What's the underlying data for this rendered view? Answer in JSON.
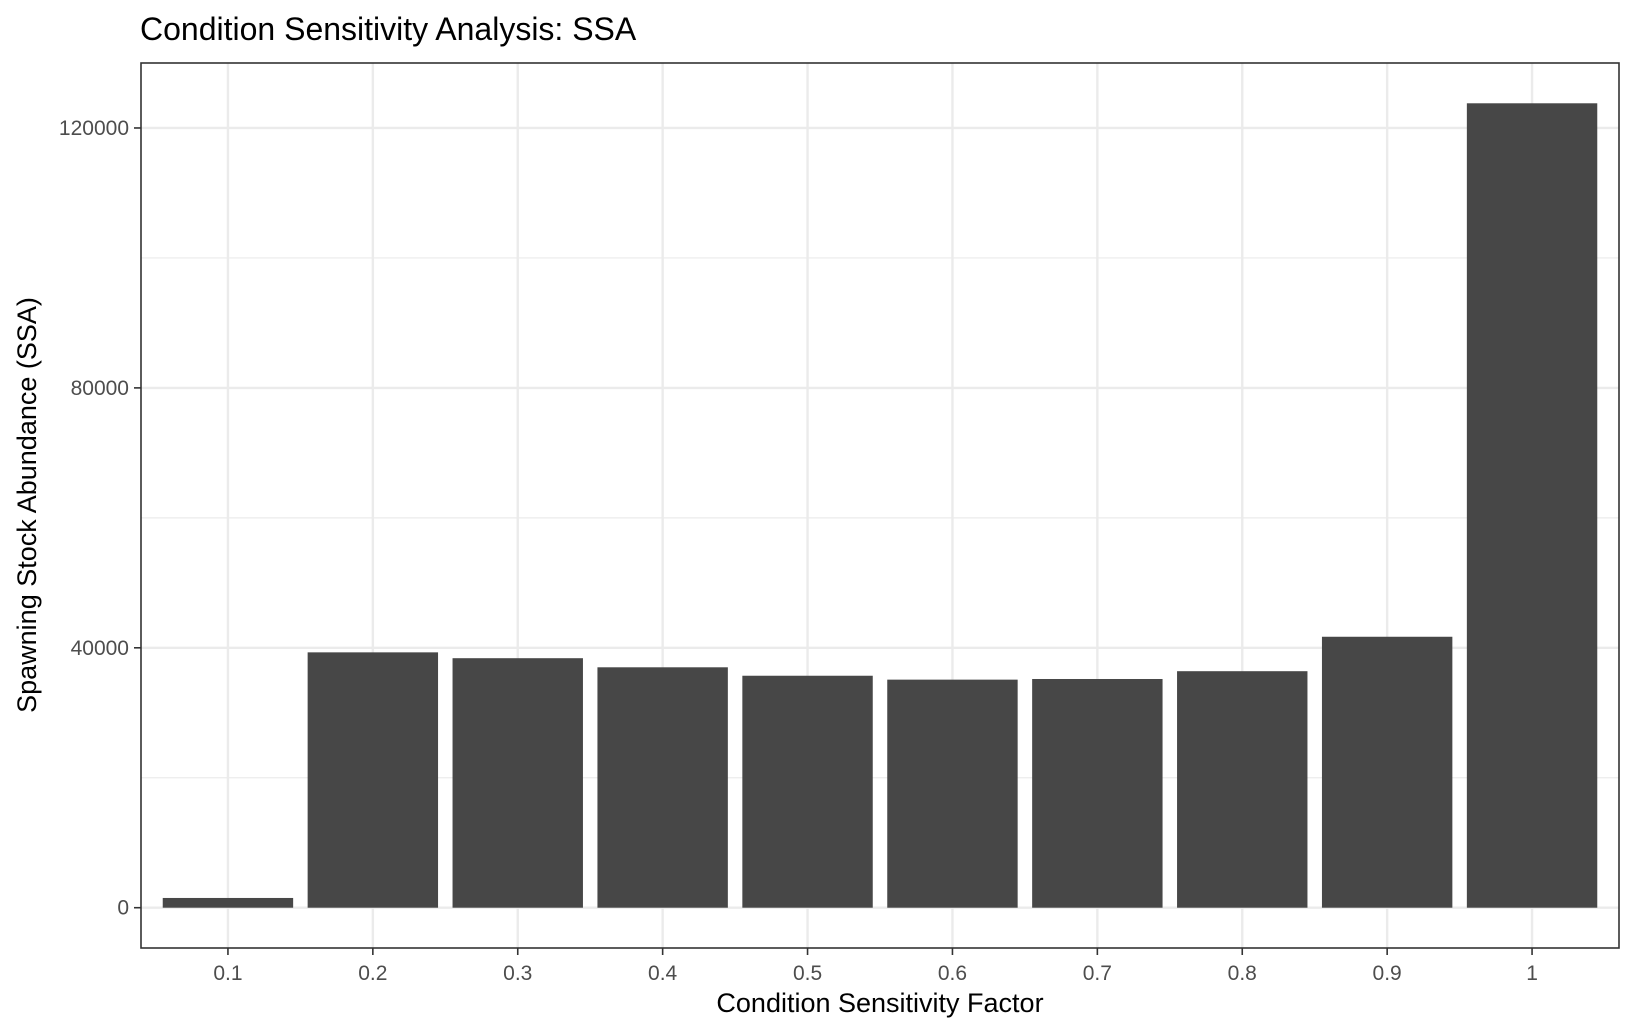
{
  "chart_data": {
    "type": "bar",
    "title": "Condition Sensitivity Analysis: SSA",
    "xlabel": "Condition Sensitivity Factor",
    "ylabel": "Spawning Stock Abundance (SSA)",
    "categories": [
      "0.1",
      "0.2",
      "0.3",
      "0.4",
      "0.5",
      "0.6",
      "0.7",
      "0.8",
      "0.9",
      "1"
    ],
    "values": [
      1500,
      39300,
      38400,
      37000,
      35700,
      35100,
      35200,
      36400,
      41700,
      123800
    ],
    "ylim": [
      -6200,
      130000
    ],
    "yticks": [
      0,
      40000,
      80000,
      120000
    ],
    "ytick_labels": [
      "0",
      "40000",
      "80000",
      "120000"
    ],
    "grid": true,
    "bar_color": "#474747"
  }
}
